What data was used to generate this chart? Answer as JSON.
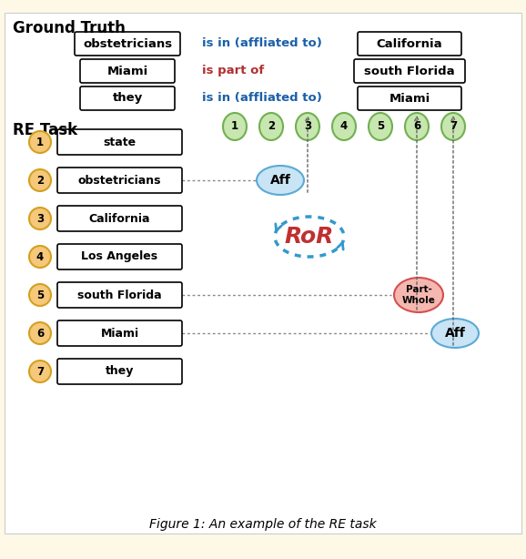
{
  "background_color": "#fef9e7",
  "gt_label": "Ground Truth",
  "re_label": "RE Task",
  "gt_rows": [
    {
      "left": "obstetricians",
      "relation": "is in (affliated to)",
      "right": "California",
      "rel_color": "#1a5fa8"
    },
    {
      "left": "Miami",
      "relation": "is part of",
      "right": "south Florida",
      "rel_color": "#b03030"
    },
    {
      "left": "they",
      "relation": "is in (affliated to)",
      "right": "Miami",
      "rel_color": "#1a5fa8"
    }
  ],
  "entities": [
    "state",
    "obstetricians",
    "California",
    "Los Angeles",
    "south Florida",
    "Miami",
    "they"
  ],
  "col_nums": [
    1,
    2,
    3,
    4,
    5,
    6,
    7
  ],
  "caption": "Figure 1: An example of the RE task",
  "aff1_color": "#c8e4f5",
  "aff1_edge": "#5baad4",
  "pw_color": "#f5b8b0",
  "pw_edge": "#d45050",
  "aff2_color": "#c8e4f5",
  "aff2_edge": "#5baad4",
  "orange_fill": "#f5c87a",
  "orange_edge": "#d4a020",
  "green_fill": "#c8e6b0",
  "green_edge": "#70b050",
  "ror_color": "#3399cc",
  "ror_text_color": "#c03030"
}
